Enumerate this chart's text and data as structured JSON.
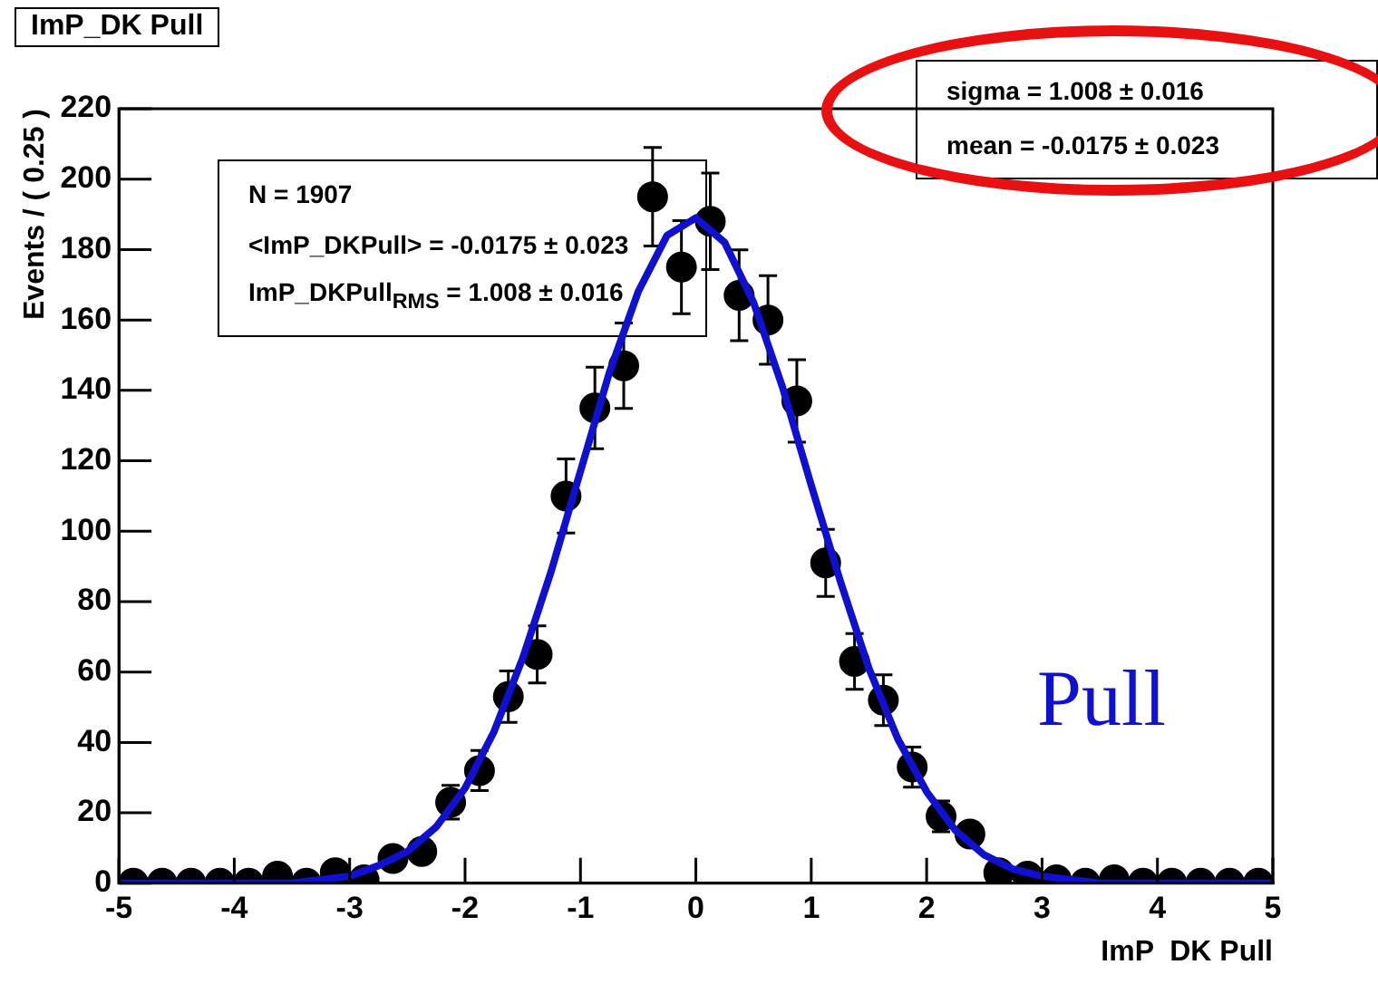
{
  "chart_data": {
    "type": "scatter",
    "title": "ImP_DK Pull",
    "xlabel": "ImP  DK Pull",
    "ylabel": "Events / ( 0.25 )",
    "x": [
      -4.875,
      -4.625,
      -4.375,
      -4.125,
      -3.875,
      -3.625,
      -3.375,
      -3.125,
      -2.875,
      -2.625,
      -2.375,
      -2.125,
      -1.875,
      -1.625,
      -1.375,
      -1.125,
      -0.875,
      -0.625,
      -0.375,
      -0.125,
      0.125,
      0.375,
      0.625,
      0.875,
      1.125,
      1.375,
      1.625,
      1.875,
      2.125,
      2.375,
      2.625,
      2.875,
      3.125,
      3.375,
      3.625,
      3.875,
      4.125,
      4.375,
      4.625,
      4.875
    ],
    "series": [
      {
        "color": "#000000",
        "marker": "circle",
        "values": [
          0,
          0,
          0,
          0,
          0,
          2,
          0,
          3,
          1,
          7,
          9,
          23,
          32,
          53,
          65,
          110,
          135,
          147,
          195,
          175,
          188,
          167,
          160,
          137,
          91,
          63,
          52,
          33,
          19,
          14,
          3,
          2,
          1,
          0,
          1,
          0,
          0,
          0,
          0,
          0
        ],
        "errors": [
          null,
          null,
          null,
          null,
          null,
          null,
          null,
          null,
          null,
          null,
          null,
          4.8,
          5.7,
          7.3,
          8.1,
          10.5,
          11.6,
          12.1,
          14,
          13.2,
          13.7,
          12.9,
          12.6,
          11.7,
          9.5,
          7.9,
          7.2,
          5.7,
          4.4,
          null,
          null,
          null,
          null,
          null,
          null,
          null,
          null,
          null,
          null,
          null
        ]
      },
      {
        "type": "line",
        "color": "#1010d0",
        "marker": "none",
        "line_style": "solid",
        "x": [
          -5,
          -4,
          -3.5,
          -3,
          -2.75,
          -2.5,
          -2.25,
          -2,
          -1.75,
          -1.5,
          -1.25,
          -1,
          -0.75,
          -0.5,
          -0.25,
          0,
          0.25,
          0.5,
          0.75,
          1,
          1.25,
          1.5,
          1.75,
          2,
          2.25,
          2.5,
          2.75,
          3,
          3.5,
          4,
          5
        ],
        "values": [
          0,
          0,
          0,
          2,
          5,
          9,
          16,
          27,
          43,
          64,
          89,
          117,
          145,
          168,
          184,
          189,
          182,
          165,
          141,
          113,
          86,
          61,
          41,
          26,
          15,
          8,
          4,
          2,
          0,
          0,
          0
        ]
      }
    ],
    "xlim": [
      -5,
      5
    ],
    "xticks": [
      -5,
      -4,
      -3,
      -2,
      -1,
      0,
      1,
      2,
      3,
      4,
      5
    ],
    "ylim": [
      0,
      220
    ],
    "yticks": [
      0,
      20,
      40,
      60,
      80,
      100,
      120,
      140,
      160,
      180,
      200,
      220
    ],
    "grid": false,
    "legend": false,
    "annotations": [
      "N = 1907",
      "<ImP_DKPull> = -0.0175 ± 0.023",
      "ImP_DKPull$_{RMS}$ = 1.008 ± 0.016",
      "sigma = 1.008 ± 0.016",
      "mean = -0.0175 ± 0.023",
      "Pull"
    ]
  }
}
